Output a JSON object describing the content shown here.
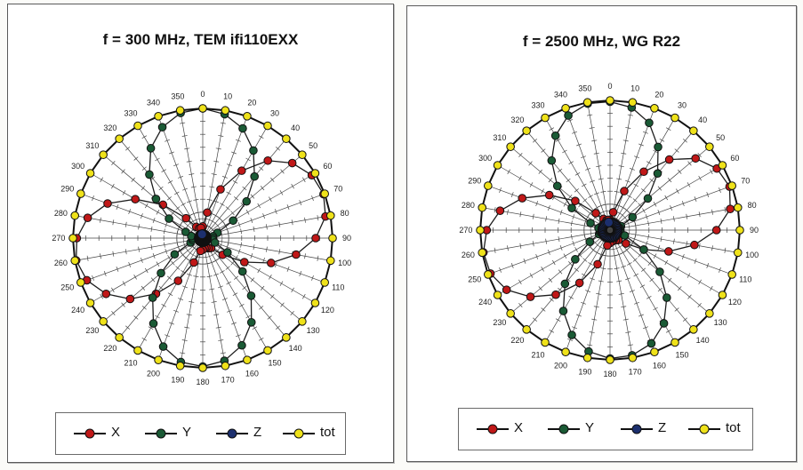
{
  "chart_data": [
    {
      "type": "polar-line",
      "title": "f = 300 MHz, TEM ifi110EXX",
      "angles_deg": [
        0,
        10,
        20,
        30,
        40,
        50,
        60,
        70,
        80,
        90,
        100,
        110,
        120,
        130,
        140,
        150,
        160,
        170,
        180,
        190,
        200,
        210,
        220,
        230,
        240,
        250,
        260,
        270,
        280,
        290,
        300,
        310,
        320,
        330,
        340,
        350
      ],
      "angle_tick_labels": [
        "0",
        "10",
        "20",
        "30",
        "40",
        "50",
        "60",
        "70",
        "80",
        "90",
        "100",
        "110",
        "120",
        "130",
        "140",
        "150",
        "160",
        "170",
        "180",
        "190",
        "200",
        "210",
        "220",
        "230",
        "240",
        "250",
        "260",
        "270",
        "280",
        "290",
        "300",
        "310",
        "320",
        "330",
        "340",
        "350"
      ],
      "grid": true,
      "legend_position": "bottom",
      "series": [
        {
          "name": "X",
          "color": "#c01818",
          "values": [
            0.09,
            0.2,
            0.4,
            0.6,
            0.78,
            0.9,
            0.97,
            0.99,
            0.96,
            0.87,
            0.73,
            0.56,
            0.37,
            0.2,
            0.1,
            0.09,
            0.08,
            0.08,
            0.09,
            0.1,
            0.2,
            0.38,
            0.56,
            0.73,
            0.86,
            0.95,
            0.99,
            0.97,
            0.9,
            0.78,
            0.6,
            0.4,
            0.2,
            0.1,
            0.08,
            0.08
          ]
        },
        {
          "name": "Y",
          "color": "#1a5a35",
          "values": [
            1.0,
            0.97,
            0.9,
            0.78,
            0.62,
            0.44,
            0.27,
            0.12,
            0.08,
            0.08,
            0.08,
            0.1,
            0.22,
            0.4,
            0.58,
            0.75,
            0.88,
            0.96,
            0.99,
            0.97,
            0.89,
            0.76,
            0.6,
            0.42,
            0.25,
            0.1,
            0.08,
            0.08,
            0.09,
            0.14,
            0.3,
            0.47,
            0.64,
            0.8,
            0.91,
            0.98
          ]
        },
        {
          "name": "Z",
          "color": "#1c2f6e",
          "values": [
            0.03,
            0.03,
            0.03,
            0.03,
            0.03,
            0.03,
            0.03,
            0.03,
            0.03,
            0.03,
            0.03,
            0.03,
            0.03,
            0.03,
            0.03,
            0.03,
            0.03,
            0.03,
            0.03,
            0.03,
            0.03,
            0.03,
            0.03,
            0.03,
            0.03,
            0.03,
            0.03,
            0.03,
            0.03,
            0.03,
            0.03,
            0.03,
            0.03,
            0.03,
            0.03,
            0.03
          ]
        },
        {
          "name": "tot",
          "color": "#efe21a",
          "values": [
            1.0,
            1.0,
            1.0,
            1.0,
            1.0,
            1.0,
            1.0,
            1.0,
            1.0,
            1.0,
            1.0,
            1.0,
            1.0,
            1.0,
            1.0,
            1.0,
            1.0,
            1.0,
            1.0,
            1.0,
            1.0,
            1.0,
            1.0,
            1.0,
            1.0,
            1.0,
            1.0,
            1.0,
            1.0,
            1.0,
            1.0,
            1.0,
            1.0,
            1.0,
            1.0,
            1.0
          ]
        }
      ]
    },
    {
      "type": "polar-line",
      "title": "f = 2500 MHz, WG R22",
      "angles_deg": [
        0,
        10,
        20,
        30,
        40,
        50,
        60,
        70,
        80,
        90,
        100,
        110,
        120,
        130,
        140,
        150,
        160,
        170,
        180,
        190,
        200,
        210,
        220,
        230,
        240,
        250,
        260,
        270,
        280,
        290,
        300,
        310,
        320,
        330,
        340,
        350
      ],
      "angle_tick_labels": [
        "0",
        "10",
        "20",
        "30",
        "40",
        "50",
        "60",
        "70",
        "80",
        "90",
        "100",
        "110",
        "120",
        "130",
        "140",
        "150",
        "160",
        "170",
        "180",
        "190",
        "200",
        "210",
        "220",
        "230",
        "240",
        "250",
        "260",
        "270",
        "280",
        "290",
        "300",
        "310",
        "320",
        "330",
        "340",
        "350"
      ],
      "grid": true,
      "legend_position": "bottom",
      "series": [
        {
          "name": "X",
          "color": "#c01818",
          "values": [
            0.08,
            0.14,
            0.32,
            0.52,
            0.71,
            0.86,
            0.95,
            0.98,
            0.94,
            0.82,
            0.66,
            0.48,
            0.3,
            0.16,
            0.1,
            0.09,
            0.08,
            0.09,
            0.1,
            0.12,
            0.28,
            0.47,
            0.65,
            0.8,
            0.92,
            0.98,
            0.99,
            0.95,
            0.86,
            0.72,
            0.54,
            0.35,
            0.17,
            0.1,
            0.08,
            0.08
          ]
        },
        {
          "name": "Y",
          "color": "#1a5a35",
          "values": [
            0.99,
            0.96,
            0.88,
            0.74,
            0.57,
            0.38,
            0.2,
            0.09,
            0.08,
            0.08,
            0.08,
            0.12,
            0.3,
            0.5,
            0.68,
            0.83,
            0.93,
            0.98,
            0.99,
            0.95,
            0.86,
            0.72,
            0.54,
            0.35,
            0.18,
            0.09,
            0.08,
            0.08,
            0.09,
            0.16,
            0.34,
            0.53,
            0.7,
            0.84,
            0.94,
            0.99
          ]
        },
        {
          "name": "Z",
          "color": "#1c2f6e",
          "values": [
            0.06,
            0.06,
            0.06,
            0.06,
            0.06,
            0.06,
            0.06,
            0.06,
            0.06,
            0.06,
            0.06,
            0.06,
            0.06,
            0.06,
            0.06,
            0.06,
            0.06,
            0.06,
            0.06,
            0.06,
            0.06,
            0.06,
            0.06,
            0.06,
            0.06,
            0.06,
            0.06,
            0.06,
            0.06,
            0.06,
            0.06,
            0.06,
            0.06,
            0.06,
            0.06,
            0.06
          ]
        },
        {
          "name": "tot",
          "color": "#efe21a",
          "values": [
            1.0,
            1.0,
            1.0,
            1.0,
            1.0,
            1.0,
            1.0,
            1.0,
            1.0,
            1.0,
            1.0,
            1.0,
            1.0,
            1.0,
            1.0,
            1.0,
            1.0,
            1.0,
            1.0,
            1.0,
            1.0,
            1.0,
            1.0,
            1.0,
            1.0,
            1.0,
            1.0,
            1.0,
            1.0,
            1.0,
            1.0,
            1.0,
            1.0,
            1.0,
            1.0,
            1.0
          ]
        }
      ]
    }
  ]
}
